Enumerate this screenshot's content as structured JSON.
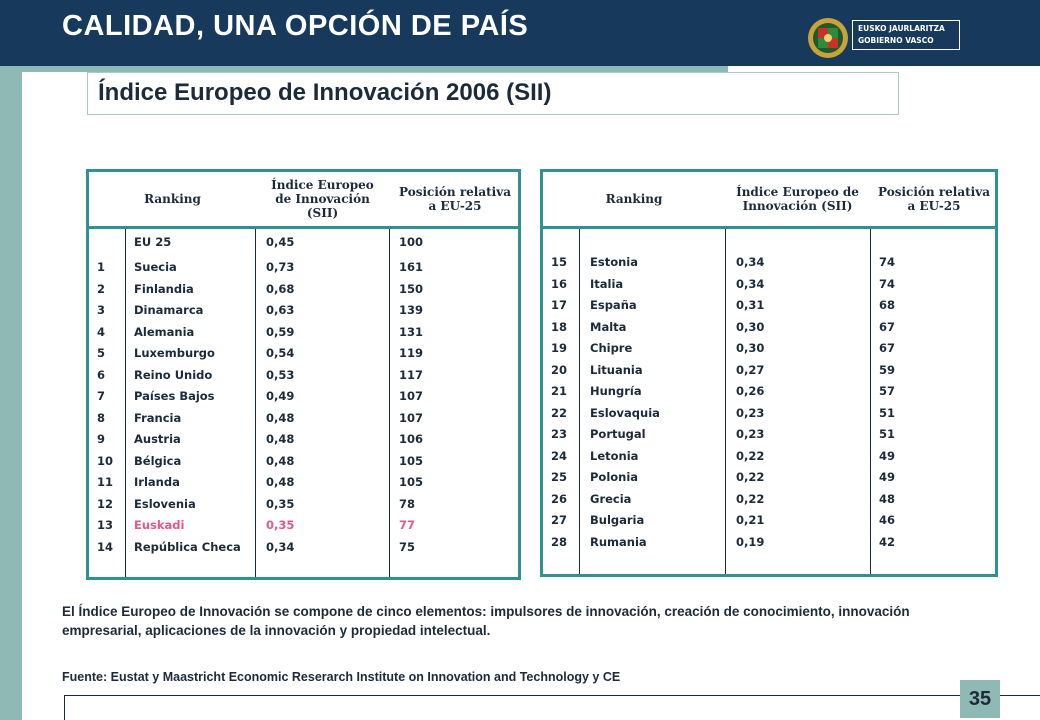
{
  "header": {
    "title": "CALIDAD, UNA OPCIÓN DE PAÍS",
    "logo_line1": "EUSKO JAURLARITZA",
    "logo_line2": "GOBIERNO VASCO"
  },
  "subtitle": "Índice Europeo de Innovación 2006 (SII)",
  "table_left": {
    "headers": [
      "Ranking",
      "Índice Europeo de Innovación (SII)",
      "Posición relativa a EU-25"
    ],
    "top_row": {
      "country": "EU 25",
      "index": "0,45",
      "position": "100"
    },
    "ranks": [
      "1",
      "2",
      "3",
      "4",
      "5",
      "6",
      "7",
      "8",
      "9",
      "10",
      "11",
      "12",
      "13",
      "14"
    ],
    "rows": [
      {
        "country": "Suecia",
        "index": "0,73",
        "position": "161"
      },
      {
        "country": "Finlandia",
        "index": "0,68",
        "position": "150"
      },
      {
        "country": "Dinamarca",
        "index": "0,63",
        "position": "139"
      },
      {
        "country": "Alemania",
        "index": "0,59",
        "position": "131"
      },
      {
        "country": "Luxemburgo",
        "index": "0,54",
        "position": "119"
      },
      {
        "country": "Reino Unido",
        "index": "0,53",
        "position": "117"
      },
      {
        "country": "Países Bajos",
        "index": "0,49",
        "position": "107"
      },
      {
        "country": "Francia",
        "index": "0,48",
        "position": "107"
      },
      {
        "country": "Austria",
        "index": "0,48",
        "position": "106"
      },
      {
        "country": "Bélgica",
        "index": "0,48",
        "position": "105"
      },
      {
        "country": "Irlanda",
        "index": "0,48",
        "position": "105"
      },
      {
        "country": "Eslovenia",
        "index": "0,35",
        "position": "78"
      },
      {
        "country": "Euskadi",
        "index": "0,35",
        "position": "77"
      },
      {
        "country": "República Checa",
        "index": "0,34",
        "position": "75"
      }
    ]
  },
  "table_right": {
    "headers": [
      "Ranking",
      "Índice Europeo de Innovación (SII)",
      "Posición relativa a EU-25"
    ],
    "rows": [
      {
        "rank": "15",
        "country": "Estonia",
        "index": "0,34",
        "position": "74"
      },
      {
        "rank": "16",
        "country": "Italia",
        "index": "0,34",
        "position": "74"
      },
      {
        "rank": "17",
        "country": "España",
        "index": "0,31",
        "position": "68"
      },
      {
        "rank": "18",
        "country": "Malta",
        "index": "0,30",
        "position": "67"
      },
      {
        "rank": "19",
        "country": "Chipre",
        "index": "0,30",
        "position": "67"
      },
      {
        "rank": "20",
        "country": "Lituania",
        "index": "0,27",
        "position": "59"
      },
      {
        "rank": "21",
        "country": "Hungría",
        "index": "0,26",
        "position": "57"
      },
      {
        "rank": "22",
        "country": "Eslovaquia",
        "index": "0,23",
        "position": "51"
      },
      {
        "rank": "23",
        "country": "Portugal",
        "index": "0,23",
        "position": "51"
      },
      {
        "rank": "24",
        "country": "Letonia",
        "index": "0,22",
        "position": "49"
      },
      {
        "rank": "25",
        "country": "Polonia",
        "index": "0,22",
        "position": "49"
      },
      {
        "rank": "26",
        "country": "Grecia",
        "index": "0,22",
        "position": "48"
      },
      {
        "rank": "27",
        "country": "Bulgaria",
        "index": "0,21",
        "position": "46"
      },
      {
        "rank": "28",
        "country": "Rumania",
        "index": "0,19",
        "position": "42"
      }
    ]
  },
  "note": "El Índice Europeo de Innovación se compone de cinco elementos: impulsores de innovación, creación de conocimiento, innovación empresarial, aplicaciones de la innovación y propiedad intelectual.",
  "source": "Fuente: Eustat y Maastricht Economic Reserarch Institute on Innovation and Technology y CE",
  "page_number": "35",
  "colors": {
    "header_bg": "#173a5c",
    "accent_teal": "#2f9192",
    "strip": "#8fb9b5",
    "highlight": "#e8568a"
  }
}
